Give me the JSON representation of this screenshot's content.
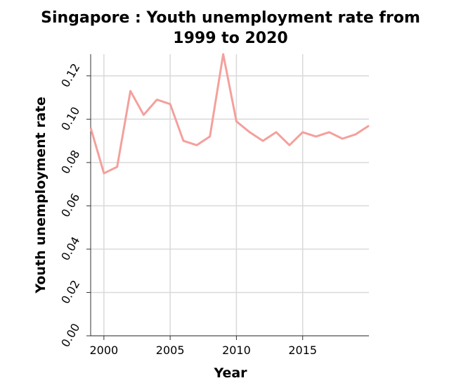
{
  "chart_data": {
    "type": "line",
    "title": "Singapore : Youth unemployment rate from 1999 to 2020",
    "title_lines": [
      "Singapore : Youth unemployment rate from",
      "1999 to 2020"
    ],
    "xlabel": "Year",
    "ylabel": "Youth unemployment rate",
    "xlim": [
      1999,
      2020
    ],
    "ylim": [
      0,
      0.13
    ],
    "x_ticks": [
      2000,
      2005,
      2010,
      2015
    ],
    "x_tick_labels": [
      "2000",
      "2005",
      "2010",
      "2015"
    ],
    "y_ticks": [
      0,
      0.02,
      0.04,
      0.06,
      0.08,
      0.1,
      0.12
    ],
    "y_tick_labels": [
      "0.00",
      "0.02",
      "0.04",
      "0.06",
      "0.08",
      "0.10",
      "0.12"
    ],
    "grid": true,
    "line_color": "#f4a09c",
    "grid_color": "#d9d9d9",
    "series": [
      {
        "x": [
          1999,
          2000,
          2001,
          2002,
          2003,
          2004,
          2005,
          2006,
          2007,
          2008,
          2009,
          2010,
          2011,
          2012,
          2013,
          2014,
          2015,
          2016,
          2017,
          2018,
          2019,
          2020
        ],
        "values": [
          0.096,
          0.075,
          0.078,
          0.113,
          0.102,
          0.109,
          0.107,
          0.09,
          0.088,
          0.092,
          0.13,
          0.099,
          0.094,
          0.09,
          0.094,
          0.088,
          0.094,
          0.092,
          0.094,
          0.091,
          0.093,
          0.097
        ]
      }
    ]
  }
}
